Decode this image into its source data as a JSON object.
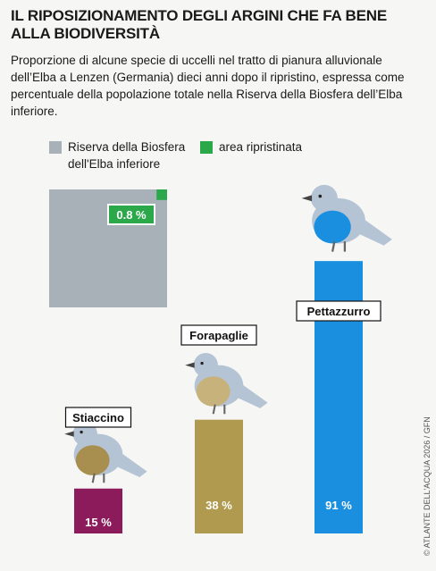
{
  "chart_data": {
    "type": "bar",
    "title": "IL RIPOSIZIONAMENTO DEGLI ARGINI CHE FA BENE ALLA BIODIVERSITÀ",
    "subtitle": "Proporzione di alcune specie di uccelli nel tratto di pianura alluvionale dell’Elba a Lenzen (Germania) dieci anni dopo il ripristino, espressa come percentuale della popolazione totale nella Riserva della Biosfera dell’Elba inferiore.",
    "legend": [
      {
        "name": "Riserva della Biosfera dell'Elba inferiore",
        "color": "#a9b1b8"
      },
      {
        "name": "area ripristinata",
        "color": "#2aa84a"
      }
    ],
    "reference": {
      "value": 0.8,
      "value_label": "0.8 %"
    },
    "categories": [
      "Stiaccino",
      "Forapaglie",
      "Pettazzurro"
    ],
    "values": [
      15,
      38,
      91
    ],
    "value_labels": [
      "15 %",
      "38 %",
      "91 %"
    ],
    "colors": [
      "#8c1b5c",
      "#b09a50",
      "#1a8fe0"
    ],
    "credit": "© ATLANTE DELL'ACQUA 2026 / GFN"
  }
}
